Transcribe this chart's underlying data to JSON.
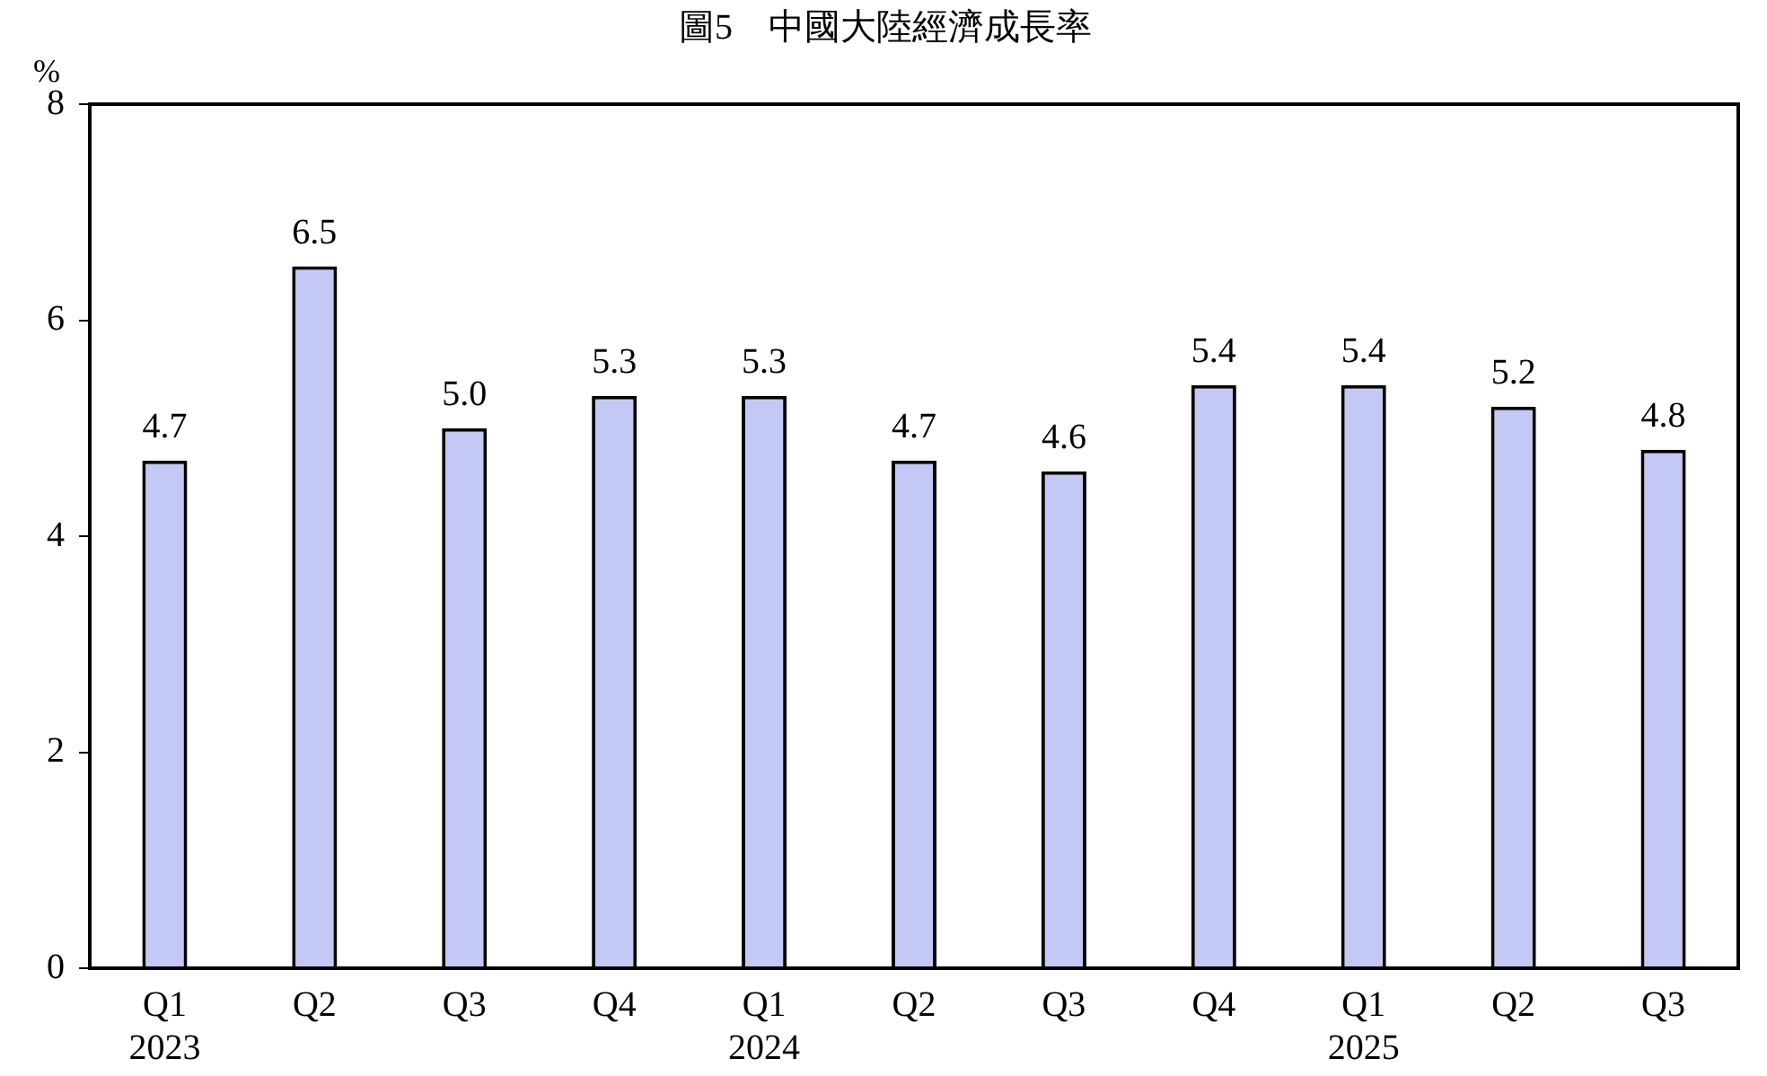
{
  "chart_data": {
    "type": "bar",
    "title": "圖5　中國大陸經濟成長率",
    "ylabel": "%",
    "categories": [
      "Q1\n2023",
      "Q2",
      "Q3",
      "Q4",
      "Q1\n2024",
      "Q2",
      "Q3",
      "Q4",
      "Q1\n2025",
      "Q2",
      "Q3"
    ],
    "values": [
      4.7,
      6.5,
      5.0,
      5.3,
      5.3,
      4.7,
      4.6,
      5.4,
      5.4,
      5.2,
      4.8
    ],
    "value_labels": [
      "4.7",
      "6.5",
      "5.0",
      "5.3",
      "5.3",
      "4.7",
      "4.6",
      "5.4",
      "5.4",
      "5.2",
      "4.8"
    ],
    "color": "#c4c8f4",
    "ylim": [
      0,
      8
    ],
    "yticks": [
      0,
      2,
      4,
      6,
      8
    ],
    "grid": false,
    "legend": false
  }
}
